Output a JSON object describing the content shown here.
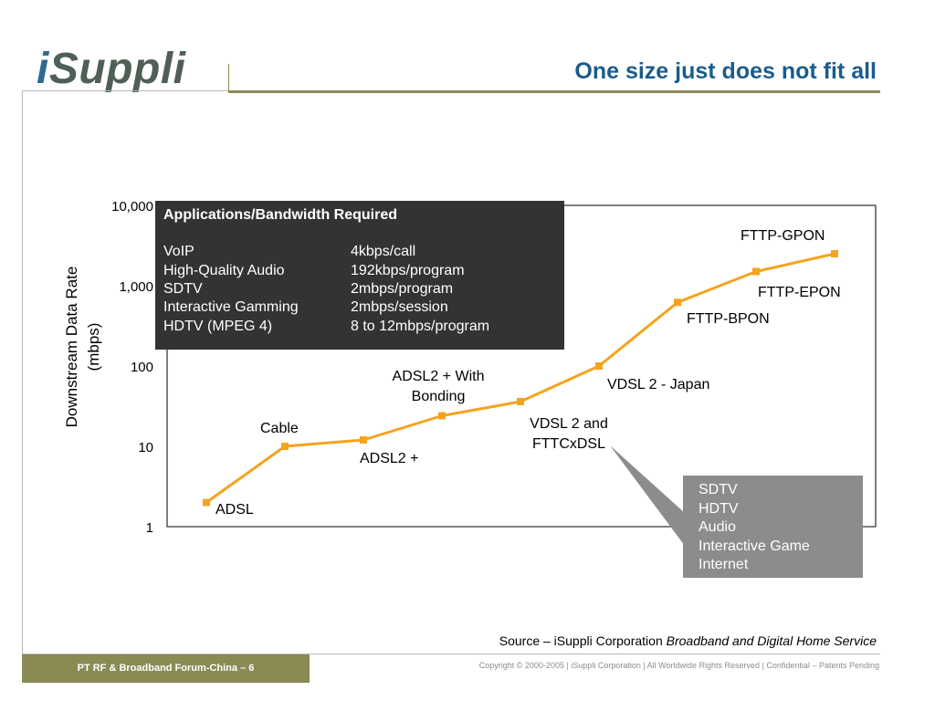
{
  "header": {
    "logo_i": "i",
    "logo_rest": "Suppli",
    "title": "One size just does not fit all"
  },
  "footer": {
    "tab_label": "PT RF & Broadband Forum-China – 6",
    "copyright": "Copyright © 2000-2005  |  iSuppli Corporation  |  All Worldwide Rights Reserved  |  Confidential – Patents Pending",
    "source_prefix": "Source – iSuppli Corporation ",
    "source_title": "Broadband and Digital Home Service"
  },
  "chart_data": {
    "type": "line",
    "ylabel_line1": "Downstream Data Rate",
    "ylabel_line2": "(mbps)",
    "y_scale": "log",
    "ylim": [
      1,
      10000
    ],
    "y_ticks": [
      "10,000",
      "1,000",
      "100",
      "10",
      "1"
    ],
    "color": "#f5a31f",
    "series": [
      {
        "points": [
          {
            "label": "ADSL",
            "y": 2
          },
          {
            "label": "Cable",
            "y": 10
          },
          {
            "label": "ADSL2 +",
            "y": 12
          },
          {
            "label": "ADSL2 +  With Bonding",
            "y": 24
          },
          {
            "label": "VDSL 2 and FTTCxDSL",
            "y": 36
          },
          {
            "label": "VDSL 2 - Japan",
            "y": 100
          },
          {
            "label": "FTTP-BPON",
            "y": 620
          },
          {
            "label": "FTTP-EPON",
            "y": 1500
          },
          {
            "label": "FTTP-GPON",
            "y": 2500
          }
        ]
      }
    ],
    "point_labels": {
      "adsl": "ADSL",
      "cable": "Cable",
      "adsl2": "ADSL2 +",
      "bonding_1": "ADSL2 +  With",
      "bonding_2": "Bonding",
      "vdsl_1": "VDSL 2 and",
      "vdsl_2": "FTTCxDSL",
      "vdsl_japan": "VDSL 2 - Japan",
      "bpon": "FTTP-BPON",
      "epon": "FTTP-EPON",
      "gpon": "FTTP-GPON"
    }
  },
  "applications_box": {
    "header": "Applications/Bandwidth Required",
    "rows": [
      {
        "app": "VoIP",
        "bandwidth": "4kbps/call"
      },
      {
        "app": "High-Quality Audio",
        "bandwidth": "192kbps/program"
      },
      {
        "app": "SDTV",
        "bandwidth": "2mbps/program"
      },
      {
        "app": "Interactive Gamming",
        "bandwidth": "2mbps/session"
      },
      {
        "app": "HDTV (MPEG 4)",
        "bandwidth": "8 to 12mbps/program"
      }
    ]
  },
  "vdsl_callout": {
    "lines": [
      "SDTV",
      "HDTV",
      "Audio",
      "Interactive Game",
      "Internet"
    ]
  }
}
